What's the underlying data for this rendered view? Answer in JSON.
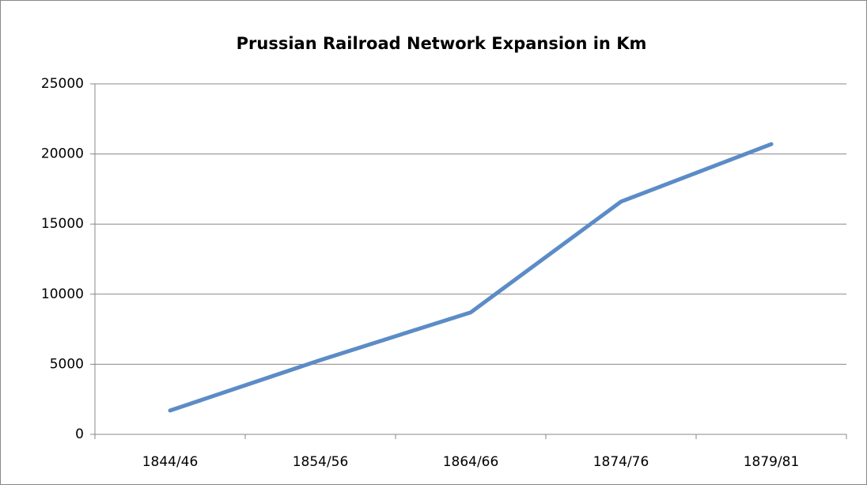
{
  "chart_data": {
    "type": "line",
    "title": "Prussian Railroad Network Expansion in Km",
    "categories": [
      "1844/46",
      "1854/56",
      "1864/66",
      "1874/76",
      "1879/81"
    ],
    "values": [
      1700,
      5300,
      8700,
      16600,
      20700
    ],
    "color": "#5b8cc7",
    "ylim": [
      0,
      25000
    ],
    "yticks": [
      0,
      5000,
      10000,
      15000,
      20000,
      25000
    ],
    "grid": true
  }
}
